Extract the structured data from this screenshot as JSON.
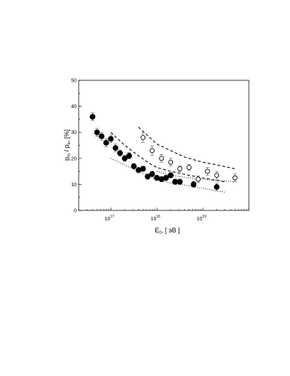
{
  "chart_data": {
    "type": "scatter",
    "title": "",
    "xlabel": {
      "base": "E",
      "sub": "0",
      "rest": ", [ эВ ]"
    },
    "ylabel": {
      "p1": "p",
      "s1": "m",
      "slash": " / p",
      "s2": "e",
      "rest": ", [%]"
    },
    "x_scale": "log",
    "xlim": [
      2e+16,
      1e+20
    ],
    "ylim": [
      0,
      50
    ],
    "x_ticks": [
      {
        "value": 1e+17,
        "mant": "10",
        "exp": "17"
      },
      {
        "value": 1e+18,
        "mant": "10",
        "exp": "18"
      },
      {
        "value": 1e+19,
        "mant": "10",
        "exp": "19"
      }
    ],
    "y_ticks": [
      {
        "value": 0,
        "label": "0"
      },
      {
        "value": 10,
        "label": "10"
      },
      {
        "value": 20,
        "label": "20"
      },
      {
        "value": 30,
        "label": "30"
      },
      {
        "value": 40,
        "label": "40"
      },
      {
        "value": 50,
        "label": "50"
      }
    ],
    "grid": false,
    "legend": "none",
    "series": [
      {
        "marker": "filled-circle",
        "points": [
          {
            "x": 4e+16,
            "y": 36,
            "err": 1.5
          },
          {
            "x": 5e+16,
            "y": 30,
            "err": 1.5
          },
          {
            "x": 6.3e+16,
            "y": 28.5,
            "err": 1.5
          },
          {
            "x": 7.9e+16,
            "y": 26,
            "err": 1.5
          },
          {
            "x": 1e+17,
            "y": 27.5,
            "err": 1.5
          },
          {
            "x": 1.26e+17,
            "y": 24,
            "err": 1.5
          },
          {
            "x": 1.58e+17,
            "y": 22,
            "err": 1.2
          },
          {
            "x": 2e+17,
            "y": 20,
            "err": 1.2
          },
          {
            "x": 2.5e+17,
            "y": 21,
            "err": 1.2
          },
          {
            "x": 3.16e+17,
            "y": 17,
            "err": 1.0
          },
          {
            "x": 4e+17,
            "y": 15.5,
            "err": 1.0
          },
          {
            "x": 5e+17,
            "y": 16,
            "err": 1.0
          },
          {
            "x": 6.3e+17,
            "y": 13,
            "err": 1.0
          },
          {
            "x": 7.9e+17,
            "y": 14,
            "err": 1.0
          },
          {
            "x": 1e+18,
            "y": 12.5,
            "err": 1.0
          },
          {
            "x": 1.26e+18,
            "y": 12,
            "err": 1.0
          },
          {
            "x": 1.58e+18,
            "y": 12.5,
            "err": 1.0
          },
          {
            "x": 2e+18,
            "y": 13.5,
            "err": 1.0
          },
          {
            "x": 2.5e+18,
            "y": 11,
            "err": 1.0
          },
          {
            "x": 3.16e+18,
            "y": 11,
            "err": 1.0
          },
          {
            "x": 6.3e+18,
            "y": 10,
            "err": 1.2
          },
          {
            "x": 2e+19,
            "y": 9,
            "err": 1.5
          }
        ]
      },
      {
        "marker": "open-circle",
        "points": [
          {
            "x": 5e+17,
            "y": 28,
            "err": 1.8
          },
          {
            "x": 7.9e+17,
            "y": 23,
            "err": 1.8
          },
          {
            "x": 1.26e+18,
            "y": 20,
            "err": 1.5
          },
          {
            "x": 2e+18,
            "y": 18.5,
            "err": 1.5
          },
          {
            "x": 3.16e+18,
            "y": 16,
            "err": 1.2
          },
          {
            "x": 5e+18,
            "y": 16.5,
            "err": 1.2
          },
          {
            "x": 7.9e+18,
            "y": 12,
            "err": 1.2
          },
          {
            "x": 1.26e+19,
            "y": 15,
            "err": 1.5
          },
          {
            "x": 2e+19,
            "y": 13.5,
            "err": 1.5
          },
          {
            "x": 5e+19,
            "y": 12.5,
            "err": 1.5
          }
        ]
      }
    ],
    "curves": [
      {
        "style": "dashed",
        "points": [
          [
            4e+17,
            32
          ],
          [
            7e+17,
            28
          ],
          [
            1e+18,
            25.5
          ],
          [
            2e+18,
            23
          ],
          [
            4e+18,
            20.5
          ],
          [
            1e+19,
            18.5
          ],
          [
            2e+19,
            17.5
          ],
          [
            5e+19,
            16
          ]
        ]
      },
      {
        "style": "dashed",
        "points": [
          [
            1e+17,
            30
          ],
          [
            2e+17,
            25
          ],
          [
            4e+17,
            21
          ],
          [
            7e+17,
            18
          ],
          [
            1e+18,
            16.5
          ],
          [
            2e+18,
            15
          ],
          [
            5e+18,
            13.5
          ],
          [
            1e+19,
            12.5
          ],
          [
            2e+19,
            11.5
          ],
          [
            3e+19,
            11
          ]
        ]
      },
      {
        "style": "dotted",
        "points": [
          [
            1e+17,
            20
          ],
          [
            2e+17,
            17.5
          ],
          [
            4e+17,
            15
          ],
          [
            7e+17,
            13
          ],
          [
            1e+18,
            12
          ],
          [
            2e+18,
            10.5
          ],
          [
            5e+18,
            9.5
          ],
          [
            1e+19,
            8.5
          ],
          [
            2e+19,
            7.5
          ],
          [
            3e+19,
            7
          ]
        ]
      },
      {
        "style": "dotted",
        "points": [
          [
            1e+18,
            15
          ],
          [
            2e+18,
            13.5
          ],
          [
            5e+18,
            12.5
          ],
          [
            1e+19,
            12
          ],
          [
            2e+19,
            11.5
          ],
          [
            5e+19,
            11
          ]
        ]
      }
    ]
  }
}
